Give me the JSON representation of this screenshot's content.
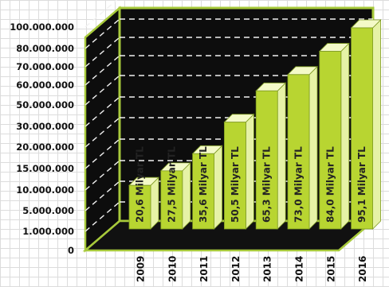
{
  "chart_data": {
    "type": "bar",
    "categories": [
      "2009",
      "2010",
      "2011",
      "2012",
      "2013",
      "2014",
      "2015",
      "2016"
    ],
    "values": [
      20.6,
      27.5,
      35.6,
      50.5,
      65.3,
      73.0,
      84.0,
      95.1
    ],
    "data_labels": [
      "20,6 Milyar TL",
      "27,5 Milyar TL",
      "35,6 Milyar TL",
      "50,5 Milyar TL",
      "65,3 Milyar TL",
      "73,0 Milyar TL",
      "84,0 Milyar TL",
      "95,1 Milyar TL"
    ],
    "y_tick_labels": [
      "0",
      "1.000.000",
      "5.000.000",
      "10.000.000",
      "15.000.000",
      "20.000.000",
      "30.000.000",
      "50.000.000",
      "60.000.000",
      "70.000.000",
      "80.000.000",
      "100.000.000"
    ],
    "ylim": [
      0,
      100
    ],
    "grid": true,
    "legend": "none",
    "title": "",
    "xlabel": "",
    "ylabel": "",
    "colors": {
      "bar_front": "#b8d531",
      "bar_side": "#e6f2a6",
      "bar_top": "#f4fac8",
      "frame": "#a7c93b",
      "plot_back": "#0d0d0d",
      "gridline": "#f2f2f2",
      "bar_label": "#232323"
    }
  }
}
